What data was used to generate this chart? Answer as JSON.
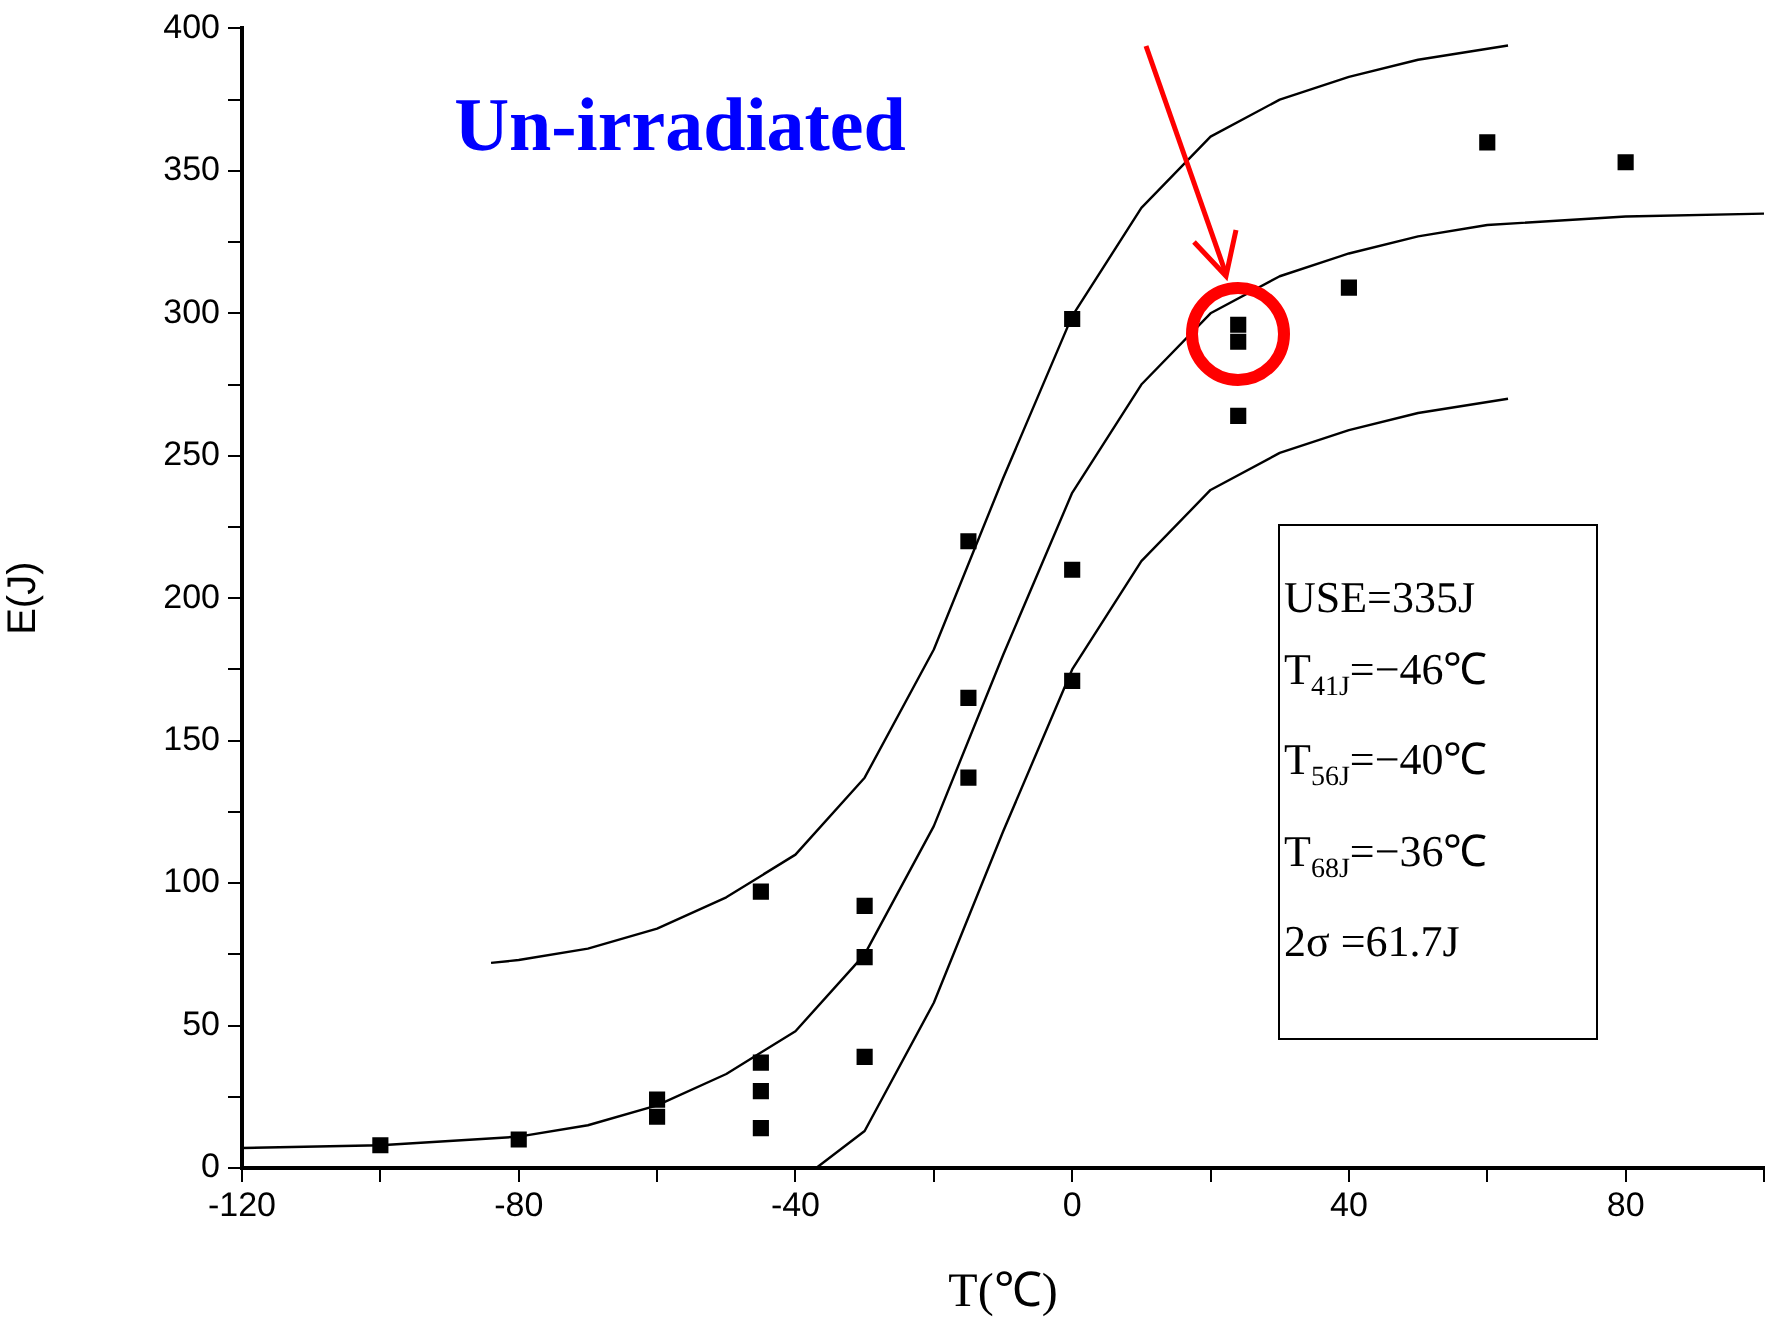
{
  "chart_data": {
    "type": "scatter",
    "title": "Un-irradiated",
    "xlabel": "T(℃)",
    "ylabel": "E(J)",
    "xlim": [
      -120,
      100
    ],
    "xticks": [
      -120,
      {
        "value": -100,
        "label": null
      },
      -80,
      {
        "value": -60,
        "label": null
      },
      -40,
      {
        "value": -20,
        "label": null
      },
      0,
      {
        "value": 20,
        "label": null
      },
      40,
      {
        "value": 60,
        "label": null
      },
      80,
      {
        "value": 100,
        "label": null
      }
    ],
    "ylim": [
      0,
      400
    ],
    "yticks": [
      0,
      {
        "value": 25,
        "label": null
      },
      50,
      {
        "value": 75,
        "label": null
      },
      100,
      {
        "value": 125,
        "label": null
      },
      150,
      {
        "value": 175,
        "label": null
      },
      200,
      {
        "value": 225,
        "label": null
      },
      250,
      {
        "value": 275,
        "label": null
      },
      300,
      {
        "value": 325,
        "label": null
      },
      350,
      {
        "value": 375,
        "label": null
      },
      400
    ],
    "grid": false,
    "legend": false,
    "annotations": [
      "USE=335J",
      "T$_{41J}$=−46℃",
      "T$_{56J}$=−40℃",
      "T$_{68J}$=−36℃",
      "2σ =61.7J"
    ],
    "series": [
      {
        "marker": "square",
        "color": "#000000",
        "x": [
          -100,
          -80,
          -60,
          -60,
          -45,
          -45,
          -45,
          -45,
          -30,
          -30,
          -30,
          -15,
          -15,
          -15,
          0,
          0,
          0,
          24,
          24,
          24,
          40,
          60,
          80
        ],
        "values": [
          8,
          10,
          24,
          18,
          97,
          37,
          27,
          14,
          92,
          74,
          39,
          220,
          165,
          137,
          298,
          210,
          171,
          296,
          290,
          264,
          309,
          360,
          353
        ]
      },
      {
        "type": "line",
        "marker": "none",
        "color": "#000000",
        "x": [
          -120,
          -100,
          -80,
          -70,
          -60,
          -50,
          -40,
          -30,
          -20,
          -10,
          0,
          10,
          20,
          30,
          40,
          50,
          60,
          80,
          100
        ],
        "values": [
          7,
          8,
          11,
          15,
          22,
          33,
          48,
          75,
          120,
          180,
          237,
          275,
          300,
          313,
          321,
          327,
          331,
          334,
          335
        ]
      },
      {
        "type": "line",
        "marker": "none",
        "color": "#000000",
        "x": [
          -84,
          -80,
          -70,
          -60,
          -50,
          -40,
          -30,
          -20,
          -10,
          0,
          10,
          20,
          30,
          40,
          50,
          63
        ],
        "values": [
          72,
          73,
          77,
          84,
          95,
          110,
          137,
          182,
          242,
          299,
          337,
          362,
          375,
          383,
          389,
          394
        ]
      },
      {
        "type": "line",
        "marker": "none",
        "color": "#000000",
        "x": [
          -37,
          -30,
          -20,
          -10,
          0,
          10,
          20,
          30,
          40,
          50,
          63
        ],
        "values": [
          0,
          13,
          58,
          118,
          175,
          213,
          238,
          251,
          259,
          265,
          270
        ]
      }
    ]
  }
}
